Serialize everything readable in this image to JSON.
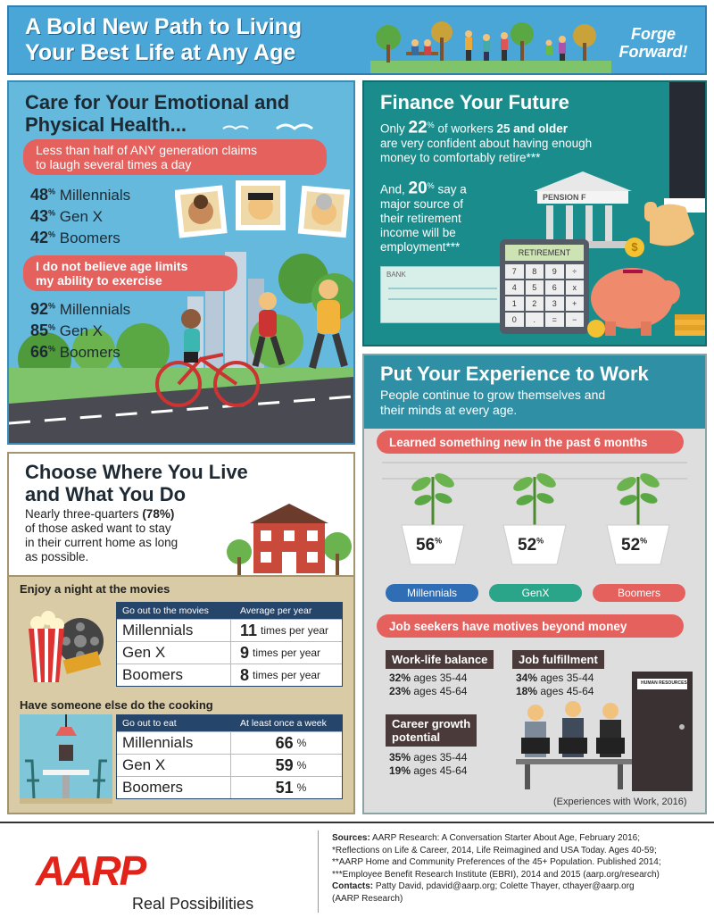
{
  "header": {
    "title_line1": "A Bold New Path to Living",
    "title_line2": "Your Best Life at Any Age",
    "forge_line1": "Forge",
    "forge_line2": "Forward!"
  },
  "health": {
    "title_line1": "Care for Your Emotional and",
    "title_line2": "Physical Health...",
    "laugh_pill_line1": "Less than half of ANY generation claims",
    "laugh_pill_line2": "to laugh several times a day",
    "laugh_stats": [
      {
        "value": "48",
        "unit": "%",
        "label": "Millennials"
      },
      {
        "value": "43",
        "unit": "%",
        "label": "Gen X"
      },
      {
        "value": "42",
        "unit": "%",
        "label": "Boomers"
      }
    ],
    "exercise_pill_line1": "I do not believe age limits",
    "exercise_pill_line2": "my ability to exercise",
    "exercise_stats": [
      {
        "value": "92",
        "unit": "%",
        "label": "Millennials"
      },
      {
        "value": "85",
        "unit": "%",
        "label": "Gen X"
      },
      {
        "value": "66",
        "unit": "%",
        "label": "Boomers"
      }
    ]
  },
  "finance": {
    "title": "Finance Your Future",
    "p1_a": "Only ",
    "p1_pct": "22",
    "p1_unit": "%",
    "p1_b": " of workers ",
    "p1_age": "25 and older",
    "p1_line2": "are very confident about having enough",
    "p1_line3": "money to comfortably retire***",
    "p2_a": "And, ",
    "p2_pct": "20",
    "p2_unit": "%",
    "p2_b": " say a",
    "p2_line2": "major source of",
    "p2_line3": "their retirement",
    "p2_line4": "income will be",
    "p2_line5": "employment***",
    "pension_label": "PENSION F",
    "calc_screen": "RETIREMENT",
    "calc_keys": [
      "7",
      "8",
      "9",
      "÷",
      "4",
      "5",
      "6",
      "x",
      "1",
      "2",
      "3",
      "+",
      "0",
      ".",
      "=",
      "−"
    ],
    "check_label": "BANK",
    "coin_symbol": "$"
  },
  "choose": {
    "title_line1": "Choose Where You Live",
    "title_line2": "and What You Do",
    "text_line1_a": "Nearly three-quarters ",
    "text_line1_b": "(78%)",
    "text_line2": "of those asked want to stay",
    "text_line3": "in their current home as long",
    "text_line4": "as possible.",
    "movies_heading": "Enjoy a night at the movies",
    "movies_col1": "Go out to the movies",
    "movies_col2": "Average per year",
    "movies_rows": [
      {
        "label": "Millennials",
        "value": "11",
        "unit": "times per year"
      },
      {
        "label": "Gen X",
        "value": "9",
        "unit": "times per year"
      },
      {
        "label": "Boomers",
        "value": "8",
        "unit": "times per year"
      }
    ],
    "cooking_heading": "Have someone else do the cooking",
    "cooking_col1": "Go out to eat",
    "cooking_col2": "At least once a week",
    "cooking_rows": [
      {
        "label": "Millennials",
        "value": "66",
        "unit": "%"
      },
      {
        "label": "Gen X",
        "value": "59",
        "unit": "%"
      },
      {
        "label": "Boomers",
        "value": "51",
        "unit": "%"
      }
    ]
  },
  "experience": {
    "title": "Put Your Experience to Work",
    "subtitle_line1": "People continue to grow themselves and",
    "subtitle_line2": "their minds at every age.",
    "learned_pill": "Learned something new in the past 6 months",
    "plants": [
      {
        "value": "56",
        "unit": "%",
        "label": "Millennials",
        "color": "#2f6db5"
      },
      {
        "value": "52",
        "unit": "%",
        "label": "GenX",
        "color": "#2aa58a"
      },
      {
        "value": "52",
        "unit": "%",
        "label": "Boomers",
        "color": "#e4615e"
      }
    ],
    "motives_pill": "Job seekers have motives beyond money",
    "motives": [
      {
        "title_line1": "Work-life balance",
        "title_line2": "",
        "l1_pct": "32%",
        "l1_txt": " ages 35-44",
        "l2_pct": "23%",
        "l2_txt": " ages 45-64"
      },
      {
        "title_line1": "Job fulfillment",
        "title_line2": "",
        "l1_pct": "34%",
        "l1_txt": " ages 35-44",
        "l2_pct": "18%",
        "l2_txt": " ages 45-64"
      },
      {
        "title_line1": "Career growth",
        "title_line2": "potential",
        "l1_pct": "35%",
        "l1_txt": " ages 35-44",
        "l2_pct": "19%",
        "l2_txt": " ages 45-64"
      }
    ],
    "door_sign": "HUMAN RESOURCES",
    "source_note": "(Experiences with Work, 2016)"
  },
  "footer": {
    "logo": "AARP",
    "tagline_a": "Real ",
    "tagline_b": "Possibilities",
    "sources_label": "Sources:",
    "sources_line1": " AARP Research: A Conversation Starter About Age, February 2016;",
    "sources_line2": "*Reflections on Life & Career, 2014, Life Reimagined and USA Today. Ages 40-59;",
    "sources_line3": "**AARP Home and Community Preferences of the 45+ Population. Published 2014;",
    "sources_line4": "***Employee Benefit Research Institute (EBRI), 2014 and 2015 (aarp.org/research)",
    "contacts_label": "Contacts:",
    "contacts_line1": " Patty David, pdavid@aarp.org; Colette Thayer, cthayer@aarp.org",
    "contacts_line2": "(AARP Research)"
  },
  "colors": {
    "accent": "#e4615e",
    "aarp_red": "#e2231a",
    "teal": "#1b8c8c",
    "sky": "#64b9dd"
  }
}
